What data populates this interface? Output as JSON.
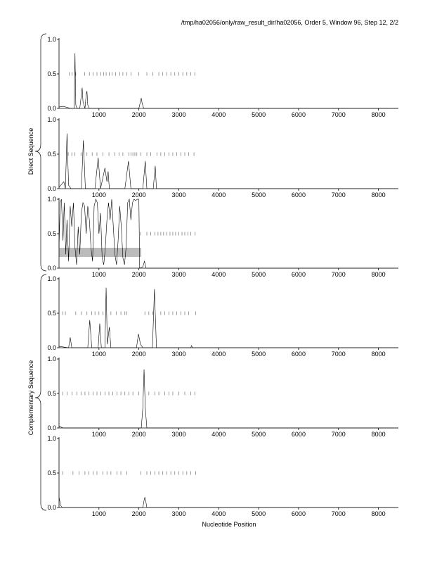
{
  "title": "/tmp/ha02056/only/raw_result_dir/ha02056, Order 5, Window 96, Step 12, 2/2",
  "x_label": "Nucleotide Position",
  "group_labels": [
    "Direct Sequence",
    "Complementary Sequence"
  ],
  "chart_data": [
    {
      "type": "line",
      "xlim": [
        0,
        8500
      ],
      "xticks": [
        1000,
        2000,
        3000,
        4000,
        5000,
        6000,
        7000,
        8000
      ],
      "ylim": [
        0,
        1
      ],
      "yticks": [
        {
          "value": 0,
          "label": "0.0"
        },
        0.5,
        {
          "value": 1,
          "label": "1.0"
        }
      ],
      "x": [
        0,
        100,
        300,
        380,
        400,
        420,
        450,
        520,
        560,
        580,
        600,
        650,
        680,
        700,
        720,
        760,
        1000,
        2000,
        2040,
        2060,
        2080,
        2120,
        3000,
        8500
      ],
      "values": [
        0.02,
        0.03,
        0,
        0,
        0.8,
        0.05,
        0,
        0,
        0.2,
        0.3,
        0.1,
        0,
        0.2,
        0.25,
        0.05,
        0,
        0,
        0,
        0.1,
        0.15,
        0.08,
        0,
        0,
        0
      ],
      "marker_x": [
        260,
        330,
        420,
        640,
        760,
        850,
        950,
        1050,
        1120,
        1180,
        1260,
        1330,
        1420,
        1520,
        1600,
        1700,
        1800,
        2000,
        2200,
        2350,
        2500,
        2600,
        2700,
        2800,
        2900,
        3000,
        3100,
        3200,
        3300,
        3400
      ]
    },
    {
      "type": "line",
      "xlim": [
        0,
        8500
      ],
      "xticks": [
        1000,
        2000,
        3000,
        4000,
        5000,
        6000,
        7000,
        8000
      ],
      "ylim": [
        0,
        1
      ],
      "yticks": [
        {
          "value": 0,
          "label": "0.0"
        },
        0.5,
        {
          "value": 1,
          "label": "1.0"
        }
      ],
      "x": [
        0,
        120,
        160,
        200,
        240,
        300,
        560,
        610,
        660,
        900,
        980,
        1040,
        1150,
        1200,
        1230,
        1260,
        1650,
        1740,
        1800,
        2100,
        2160,
        2200,
        2360,
        2410,
        2440,
        8500
      ],
      "values": [
        0.02,
        0.1,
        0,
        0.8,
        0.05,
        0,
        0,
        0.7,
        0,
        0,
        0.45,
        0,
        0.3,
        0.1,
        0.25,
        0,
        0,
        0.4,
        0,
        0,
        0.4,
        0,
        0,
        0.33,
        0,
        0
      ],
      "marker_x": [
        230,
        320,
        400,
        550,
        700,
        830,
        950,
        1100,
        1250,
        1400,
        1500,
        1600,
        1750,
        1800,
        1850,
        1900,
        1950,
        2050,
        2200,
        2300,
        2450,
        2550,
        2650,
        2750,
        2850,
        2950,
        3050,
        3150,
        3250,
        3380
      ]
    },
    {
      "type": "line",
      "xlim": [
        0,
        8500
      ],
      "xticks": [
        1000,
        2000,
        3000,
        4000,
        5000,
        6000,
        7000,
        8000
      ],
      "ylim": [
        0,
        1
      ],
      "yticks": [
        {
          "value": 0,
          "label": "0.0"
        },
        0.5,
        {
          "value": 1,
          "label": "1.0"
        }
      ],
      "x": [
        0,
        30,
        60,
        100,
        130,
        170,
        200,
        240,
        280,
        320,
        360,
        400,
        440,
        480,
        520,
        560,
        600,
        640,
        680,
        720,
        760,
        800,
        840,
        880,
        920,
        960,
        1000,
        1040,
        1080,
        1120,
        1160,
        1200,
        1240,
        1280,
        1320,
        1360,
        1400,
        1440,
        1480,
        1520,
        1560,
        1600,
        1640,
        1680,
        1720,
        1760,
        1800,
        1840,
        1880,
        1920,
        1960,
        2000,
        2020,
        2100,
        2140,
        2180,
        8500
      ],
      "values": [
        0.3,
        0.95,
        1,
        0.4,
        0.95,
        0.2,
        0.7,
        0.1,
        0.9,
        0.6,
        0.95,
        0.3,
        0.05,
        0.6,
        0.2,
        0.8,
        0.95,
        0.9,
        0.5,
        0.9,
        0.7,
        0.3,
        0.1,
        0.9,
        1,
        0.95,
        0.5,
        0.8,
        0.15,
        0.05,
        0.3,
        0.7,
        0.95,
        0.7,
        1,
        0.6,
        0.2,
        0.05,
        0.4,
        0.9,
        0.6,
        0.15,
        0.05,
        0.3,
        0.95,
        1,
        0.7,
        0.95,
        1,
        0.98,
        1,
        1,
        0,
        0.02,
        0.1,
        0,
        0
      ],
      "regions": [
        [
          0,
          2060
        ]
      ],
      "marker_x": [
        2040,
        2200,
        2300,
        2400,
        2480,
        2550,
        2620,
        2700,
        2780,
        2850,
        2920,
        3000,
        3080,
        3150,
        3230,
        3300,
        3410
      ]
    },
    {
      "type": "line",
      "xlim": [
        0,
        8500
      ],
      "xticks": [
        1000,
        2000,
        3000,
        4000,
        5000,
        6000,
        7000,
        8000
      ],
      "ylim": [
        0,
        1
      ],
      "yticks": [
        {
          "value": 0,
          "label": "0.0"
        },
        0.5,
        {
          "value": 1,
          "label": "1.0"
        }
      ],
      "x": [
        0,
        240,
        280,
        320,
        720,
        770,
        820,
        980,
        1020,
        1060,
        1150,
        1180,
        1210,
        1260,
        1300,
        1940,
        1990,
        2040,
        2100,
        2340,
        2390,
        2440,
        3300,
        3320,
        3340,
        8500
      ],
      "values": [
        0.02,
        0,
        0.15,
        0,
        0,
        0.4,
        0,
        0,
        0.35,
        0,
        0,
        0.87,
        0.05,
        0.3,
        0,
        0,
        0.2,
        0.05,
        0,
        0,
        0.85,
        0,
        0,
        0.03,
        0,
        0
      ],
      "marker_x": [
        100,
        160,
        420,
        560,
        700,
        820,
        900,
        1000,
        1100,
        1300,
        1430,
        1550,
        1650,
        1700,
        2150,
        2250,
        2350,
        2550,
        2650,
        2750,
        2850,
        2950,
        3050,
        3150,
        3250,
        3420
      ]
    },
    {
      "type": "line",
      "xlim": [
        0,
        8500
      ],
      "xticks": [
        1000,
        2000,
        3000,
        4000,
        5000,
        6000,
        7000,
        8000
      ],
      "ylim": [
        0,
        1
      ],
      "yticks": [
        {
          "value": 0,
          "label": "0.0"
        },
        0.5,
        {
          "value": 1,
          "label": "1.0"
        }
      ],
      "x": [
        0,
        60,
        100,
        2060,
        2100,
        2130,
        2160,
        2200,
        8500
      ],
      "values": [
        0.03,
        0.01,
        0,
        0,
        0.3,
        0.85,
        0.3,
        0,
        0
      ],
      "marker_x": [
        100,
        200,
        330,
        450,
        550,
        650,
        750,
        850,
        950,
        1050,
        1150,
        1250,
        1350,
        1450,
        1550,
        1650,
        1750,
        1850,
        2000,
        2250,
        2400,
        2500,
        2650,
        2750,
        2850,
        3000,
        3150,
        3300,
        3400
      ]
    },
    {
      "type": "line",
      "xlim": [
        0,
        8500
      ],
      "xticks": [
        1000,
        2000,
        3000,
        4000,
        5000,
        6000,
        7000,
        8000
      ],
      "ylim": [
        0,
        1
      ],
      "yticks": [
        {
          "value": 0,
          "label": "0.0"
        },
        0.5,
        {
          "value": 1,
          "label": "1.0"
        }
      ],
      "x": [
        0,
        40,
        80,
        2100,
        2130,
        2150,
        2170,
        2200,
        8500
      ],
      "values": [
        0.15,
        0.03,
        0,
        0,
        0.1,
        0.15,
        0.1,
        0,
        0
      ],
      "marker_x": [
        100,
        350,
        500,
        650,
        750,
        850,
        950,
        1100,
        1200,
        1300,
        1450,
        1550,
        1700,
        2050,
        2200,
        2300,
        2400,
        2500,
        2600,
        2700,
        2800,
        2900,
        3000,
        3100,
        3200,
        3300,
        3420
      ]
    }
  ]
}
